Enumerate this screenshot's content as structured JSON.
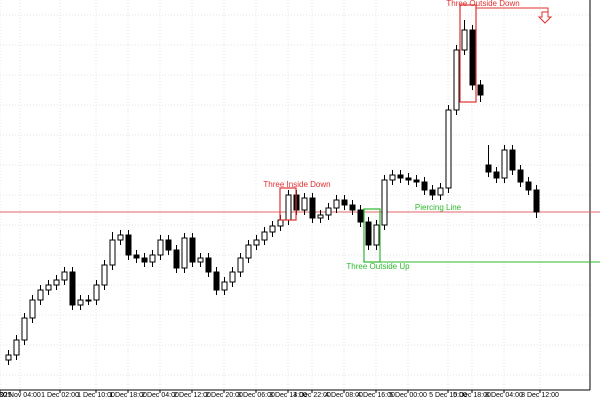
{
  "chart_data": {
    "type": "candlestick",
    "up_color": "#ffffff",
    "down_color": "#000000",
    "edge_color": "#000000",
    "xlim": [
      -1,
      72.75
    ],
    "ylim": [
      0,
      390
    ],
    "open": [
      30,
      35,
      50,
      72,
      90,
      100,
      105,
      110,
      118,
      85,
      90,
      90,
      105,
      125,
      150,
      155,
      135,
      132,
      128,
      135,
      150,
      140,
      122,
      152,
      128,
      132,
      118,
      100,
      108,
      118,
      132,
      145,
      150,
      158,
      164,
      170,
      195,
      180,
      192,
      172,
      175,
      182,
      190,
      185,
      180,
      168,
      145,
      165,
      210,
      215,
      212,
      210,
      208,
      200,
      195,
      202,
      280,
      340,
      360,
      305,
      225,
      218,
      212,
      240,
      220,
      208,
      200
    ],
    "high": [
      40,
      55,
      77,
      95,
      105,
      110,
      115,
      123,
      123,
      95,
      95,
      110,
      130,
      158,
      160,
      160,
      140,
      137,
      140,
      155,
      155,
      145,
      157,
      157,
      137,
      137,
      123,
      113,
      123,
      137,
      150,
      155,
      163,
      169,
      175,
      200,
      200,
      197,
      197,
      180,
      187,
      195,
      195,
      190,
      185,
      173,
      170,
      215,
      220,
      220,
      217,
      215,
      213,
      205,
      207,
      285,
      345,
      370,
      365,
      310,
      245,
      223,
      245,
      245,
      225,
      213,
      205
    ],
    "low": [
      25,
      30,
      45,
      67,
      85,
      95,
      100,
      105,
      80,
      80,
      85,
      85,
      100,
      120,
      145,
      130,
      127,
      123,
      123,
      130,
      135,
      117,
      117,
      123,
      123,
      113,
      95,
      95,
      103,
      113,
      127,
      140,
      145,
      153,
      159,
      165,
      175,
      175,
      167,
      167,
      170,
      177,
      180,
      175,
      163,
      140,
      140,
      160,
      205,
      207,
      205,
      203,
      195,
      190,
      190,
      197,
      275,
      335,
      300,
      288,
      213,
      207,
      207,
      215,
      203,
      195,
      172
    ],
    "close": [
      35,
      50,
      72,
      90,
      100,
      105,
      110,
      118,
      85,
      90,
      90,
      105,
      125,
      150,
      155,
      135,
      132,
      128,
      135,
      150,
      140,
      122,
      152,
      128,
      132,
      118,
      100,
      108,
      118,
      132,
      145,
      150,
      158,
      164,
      170,
      195,
      180,
      192,
      172,
      175,
      182,
      190,
      185,
      180,
      168,
      145,
      165,
      210,
      215,
      212,
      210,
      208,
      200,
      195,
      202,
      280,
      340,
      360,
      305,
      295,
      218,
      212,
      240,
      220,
      208,
      200,
      178
    ],
    "xticks": [
      {
        "value": -1,
        "label": "025"
      },
      {
        "value": 1.5,
        "label": "30 Nov 04:00"
      },
      {
        "value": 6.5,
        "label": "1 Dec 02:00"
      },
      {
        "value": 11,
        "label": "1 Dec 10:00"
      },
      {
        "value": 15,
        "label": "1 Dec 18:00"
      },
      {
        "value": 19,
        "label": "2 Dec 04:00"
      },
      {
        "value": 23,
        "label": "2 Dec 12:00"
      },
      {
        "value": 27,
        "label": "2 Dec 20:00"
      },
      {
        "value": 31,
        "label": "3 Dec 06:00"
      },
      {
        "value": 35,
        "label": "3 Dec 14:00"
      },
      {
        "value": 38,
        "label": "3 Dec 22:00"
      },
      {
        "value": 42,
        "label": "4 Dec 08:00"
      },
      {
        "value": 46,
        "label": "4 Dec 16:00"
      },
      {
        "value": 50,
        "label": "5 Dec 00:00"
      },
      {
        "value": 55,
        "label": "5 Dec 10:00"
      },
      {
        "value": 58,
        "label": "5 Dec 18:00"
      },
      {
        "value": 62,
        "label": "8 Dec 04:00"
      },
      {
        "value": 66.5,
        "label": "8 Dec 12:00"
      }
    ],
    "grid": true,
    "levels": [
      {
        "value": 178,
        "color": "#e06666"
      },
      {
        "value": 128,
        "color": "#2db82d"
      }
    ],
    "annotations": [
      {
        "text": "Three Outside Down",
        "color": "#e03030"
      },
      {
        "text": "Three Inside Down",
        "color": "#e03030"
      },
      {
        "text": "Piercing Line",
        "color": "#2db82d"
      },
      {
        "text": "Three Outside Up",
        "color": "#2db82d"
      }
    ]
  }
}
